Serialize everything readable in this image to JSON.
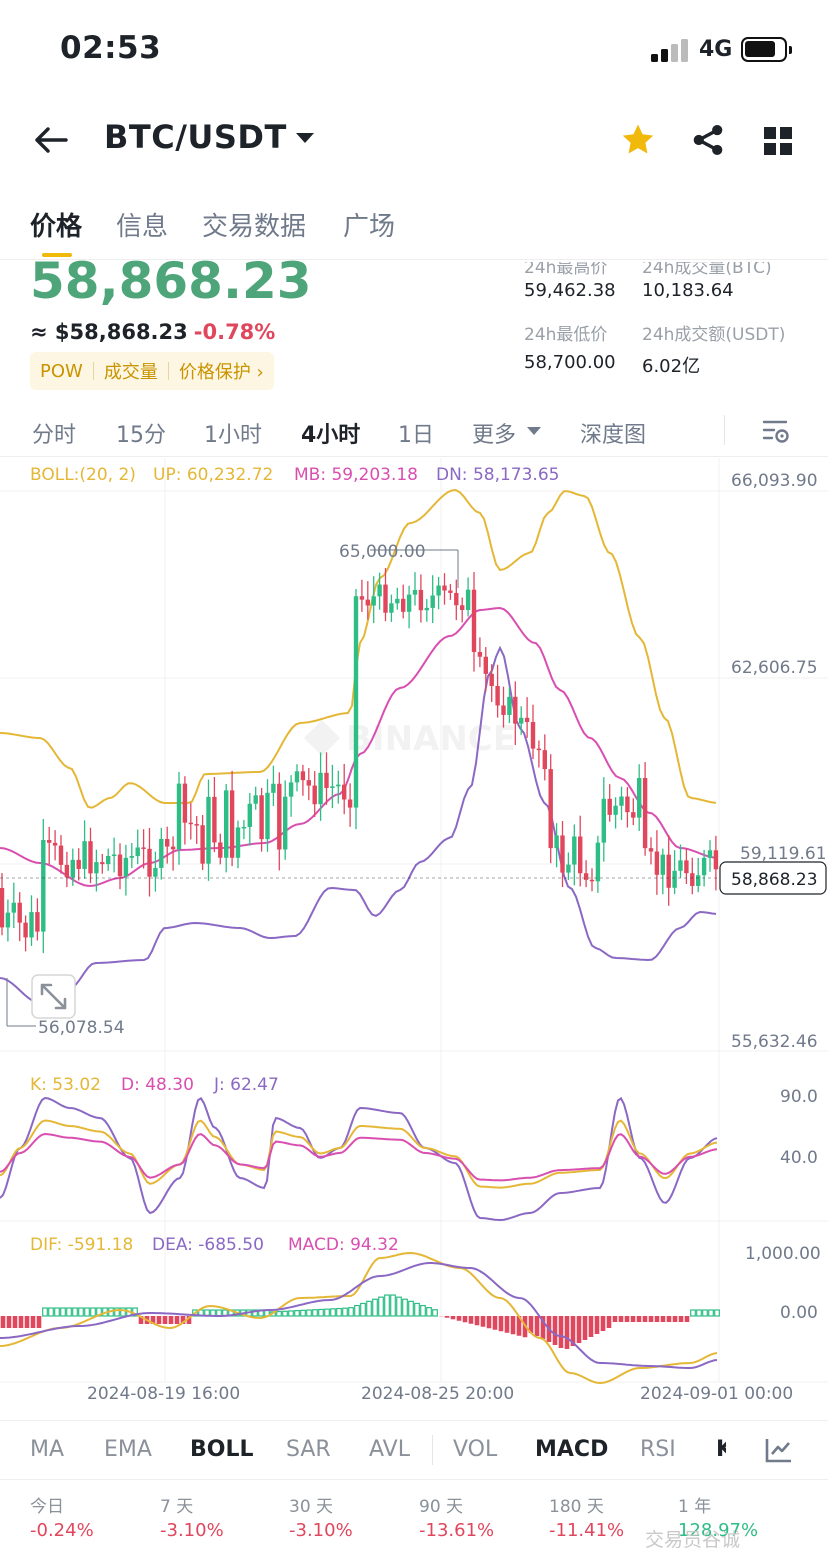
{
  "status": {
    "time": "02:53",
    "network": "4G"
  },
  "header": {
    "pair": "BTC/USDT"
  },
  "tabs": [
    "价格",
    "信息",
    "交易数据",
    "广场"
  ],
  "ticker": {
    "price": "58,868.23",
    "fiat": "≈ $58,868.23",
    "change": "-0.78%",
    "tags": [
      "POW",
      "成交量",
      "价格保护 ›"
    ],
    "stats": [
      {
        "label": "24h最高价",
        "value": "59,462.38"
      },
      {
        "label": "24h成交量(BTC)",
        "value": "10,183.64"
      },
      {
        "label": "24h最低价",
        "value": "58,700.00"
      },
      {
        "label": "24h成交额(USDT)",
        "value": "6.02亿"
      }
    ]
  },
  "timeframes": [
    "分时",
    "15分",
    "1小时",
    "4小时",
    "1日",
    "更多"
  ],
  "depth_label": "深度图",
  "boll": {
    "label": "BOLL:(20, 2)",
    "up": "UP: 60,232.72",
    "mb": "MB: 59,203.18",
    "dn": "DN: 58,173.65"
  },
  "kdj": {
    "k": "K: 53.02",
    "d": "D: 48.30",
    "j": "J: 62.47"
  },
  "macd": {
    "dif": "DIF: -591.18",
    "dea": "DEA: -685.50",
    "macd": "MACD: 94.32"
  },
  "watermark_logo": "BINANCE",
  "colors": {
    "up": "#2ebd85",
    "down": "#e0475d",
    "boll_up": "#e5b737",
    "boll_mb": "#d94fb0",
    "boll_dn": "#8a68c4",
    "accent": "#f0b90b"
  },
  "chart_data": [
    {
      "type": "candlestick",
      "series": [
        {
          "name": "UP",
          "role": "upper band"
        },
        {
          "name": "MB",
          "role": "middle band"
        },
        {
          "name": "DN",
          "role": "lower band"
        }
      ],
      "y_ticks": [
        "66,093.90",
        "62,606.75",
        "59,119.61",
        "55,632.46"
      ],
      "ylim": [
        55632.46,
        66093.9
      ],
      "annotations": {
        "high": "65,000.00",
        "low": "56,078.54",
        "last": "58,868.23"
      },
      "x_ticks": [
        "2024-08-19 16:00",
        "2024-08-25 20:00",
        "2024-09-01 00:00"
      ]
    },
    {
      "type": "line",
      "series": [
        {
          "name": "K"
        },
        {
          "name": "D"
        },
        {
          "name": "J"
        }
      ],
      "y_ticks": [
        "90.0",
        "40.0"
      ]
    },
    {
      "type": "bar",
      "series": [
        {
          "name": "DIF"
        },
        {
          "name": "DEA"
        },
        {
          "name": "MACD"
        }
      ],
      "y_ticks": [
        "1,000.00",
        "0.00"
      ]
    }
  ],
  "indicators": [
    "MA",
    "EMA",
    "BOLL",
    "SAR",
    "AVL",
    "VOL",
    "MACD",
    "RSI",
    "K"
  ],
  "performance": [
    {
      "label": "今日",
      "value": "-0.24%"
    },
    {
      "label": "7 天",
      "value": "-3.10%"
    },
    {
      "label": "30 天",
      "value": "-3.10%"
    },
    {
      "label": "90 天",
      "value": "-13.61%"
    },
    {
      "label": "180 天",
      "value": "-11.41%"
    },
    {
      "label": "1 年",
      "value": "128.97%"
    }
  ],
  "watermark": "交易员谷诚"
}
